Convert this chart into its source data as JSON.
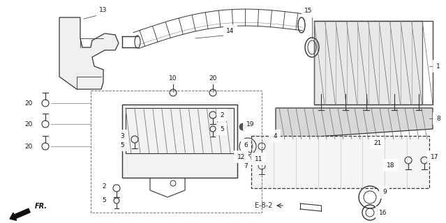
{
  "bg_color": "#ffffff",
  "line_color": "#333333",
  "fig_width": 6.39,
  "fig_height": 3.2,
  "dpi": 100,
  "gray1": "#888888",
  "gray2": "#555555",
  "gray3": "#aaaaaa",
  "gray_dark": "#444444",
  "gray_fill": "#cccccc",
  "gray_mid": "#999999"
}
